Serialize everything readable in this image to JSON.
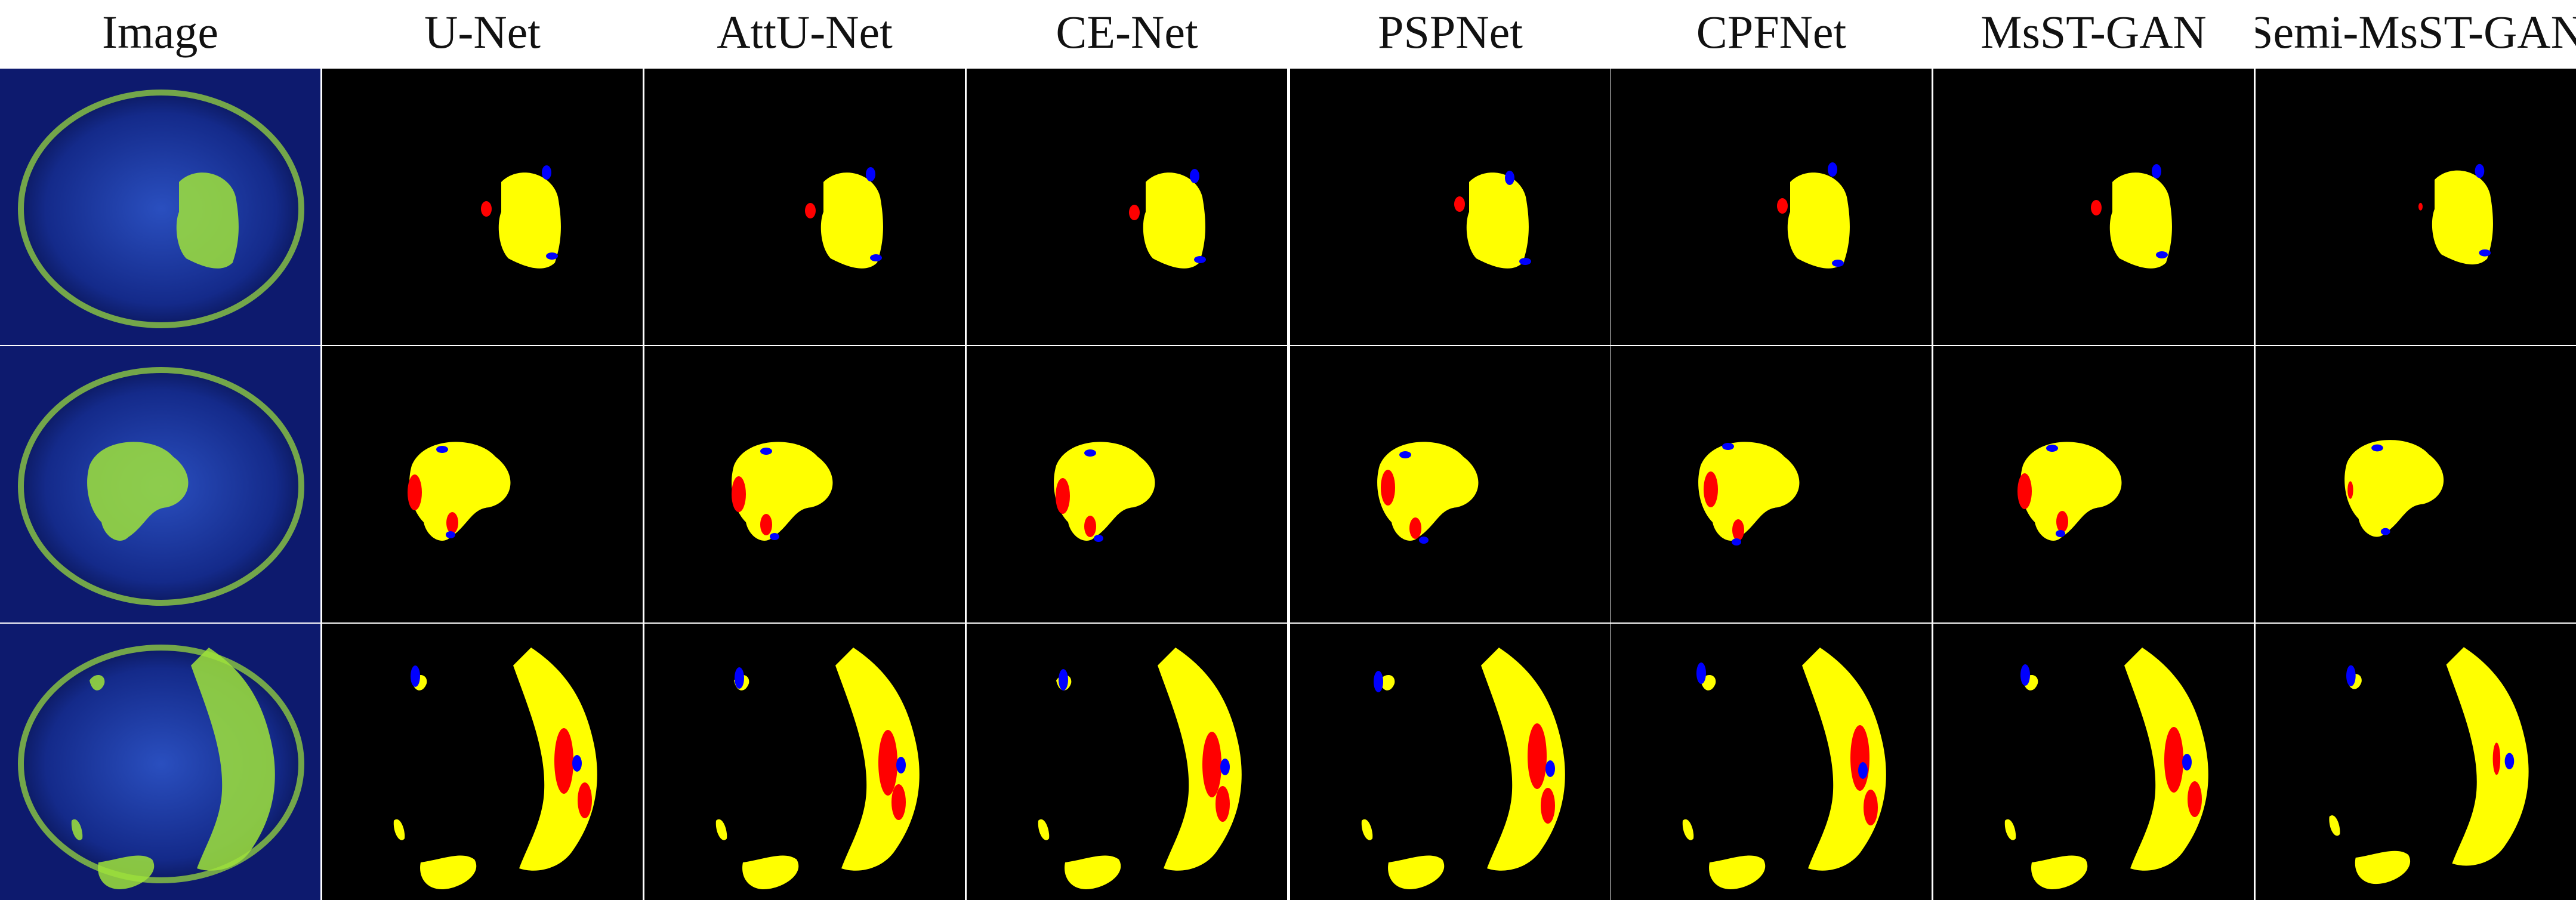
{
  "columns": [
    {
      "label": "Image"
    },
    {
      "label": "U-Net"
    },
    {
      "label": "AttU-Net"
    },
    {
      "label": "CE-Net"
    },
    {
      "label": "PSPNet"
    },
    {
      "label": "CPFNet"
    },
    {
      "label": "MsST-GAN"
    },
    {
      "label": "Semi-MsST-GAN"
    }
  ],
  "rows": [
    {
      "sample": "row-1-small-lesion"
    },
    {
      "sample": "row-2-central-lesion"
    },
    {
      "sample": "row-3-ring-lesion"
    }
  ],
  "colors": {
    "background": "#000000",
    "true-positive": "#ffff00",
    "false-positive": "#ff0000",
    "false-negative": "#0000ff",
    "eye-base": "#0d1a6e",
    "stain": "#9fe33a"
  }
}
